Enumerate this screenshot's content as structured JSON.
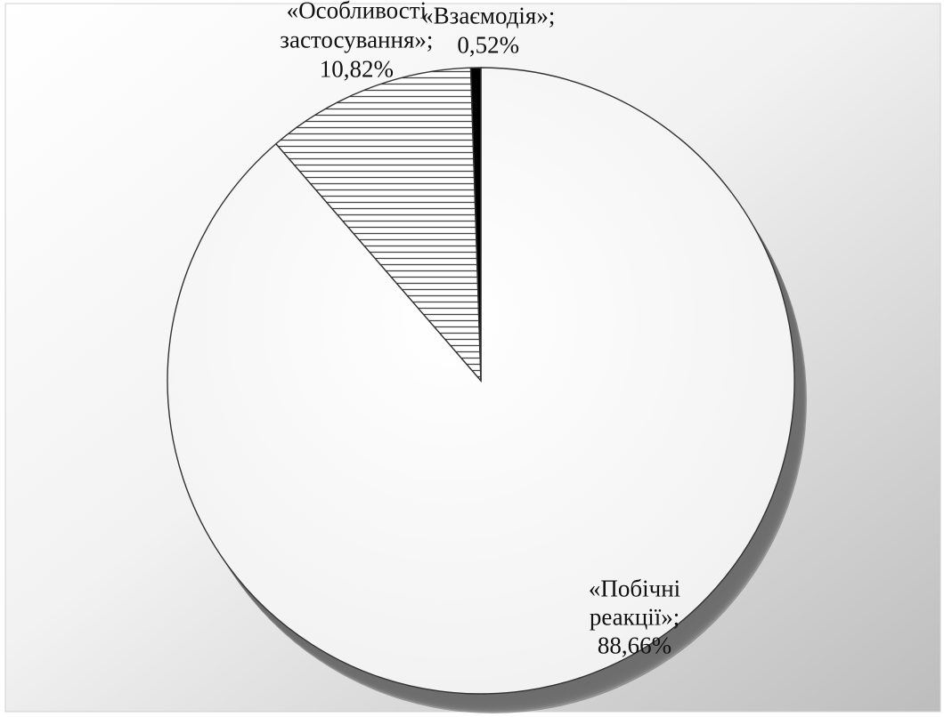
{
  "chart_data": {
    "type": "pie",
    "start_angle_deg": 0,
    "direction": "clockwise",
    "style": "3d-pie-with-shadow",
    "slices": [
      {
        "label": "«Побічні реакції»",
        "label_lines": [
          "«Побічні",
          "реакції»;",
          "88,66%"
        ],
        "value": 88.66,
        "value_label": "88,66%",
        "fill": "#fafafa",
        "pattern": "solid"
      },
      {
        "label": "«Особливості застосування»",
        "label_lines": [
          "«Особливості",
          "застосування»;",
          "10,82%"
        ],
        "value": 10.82,
        "value_label": "10,82%",
        "fill": "#ffffff",
        "pattern": "horizontal-lines"
      },
      {
        "label": "«Взаємодія»",
        "label_lines": [
          "«Взаємодія»;",
          "0,52%"
        ],
        "value": 0.52,
        "value_label": "0,52%",
        "fill": "#000000",
        "pattern": "solid"
      }
    ],
    "colors": {
      "background_light": "#ffffff",
      "background_dark": "#bdbdbd",
      "outline": "#333333",
      "shadow": "#6e6e6e",
      "hatch_line": "#444444"
    }
  }
}
